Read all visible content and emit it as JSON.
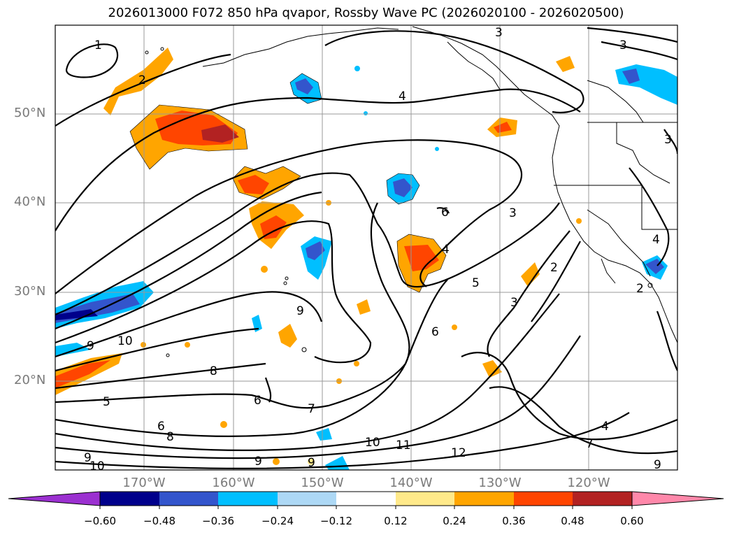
{
  "title": "2026013000 F072 850 hPa qvapor, Rossby Wave PC (2026020100 - 2026020500)",
  "map": {
    "lon_range": [
      -178,
      -108
    ],
    "lat_range": [
      10,
      60
    ],
    "lat_labels": [
      "50°N",
      "40°N",
      "30°N",
      "20°N"
    ],
    "lon_labels": [
      "170°W",
      "160°W",
      "150°W",
      "140°W",
      "130°W",
      "120°W"
    ],
    "contour_labels": [
      "1",
      "2",
      "3",
      "3",
      "4",
      "6",
      "3",
      "2",
      "4",
      "5",
      "3",
      "6",
      "9",
      "9",
      "10",
      "8",
      "6",
      "5",
      "6",
      "8",
      "7",
      "10",
      "11",
      "12",
      "9",
      "10",
      "9",
      "9",
      "2",
      "3",
      "4",
      "4",
      "7",
      "9"
    ]
  },
  "colorbar": {
    "colors": [
      "#9b30d0",
      "#00008b",
      "#3355cc",
      "#00bfff",
      "#add8f5",
      "#ffffff",
      "#ffe98a",
      "#ffa500",
      "#ff4500",
      "#b22222",
      "#ff88aa"
    ],
    "ticks": [
      "−0.60",
      "−0.48",
      "−0.36",
      "−0.24",
      "−0.12",
      "0.12",
      "0.24",
      "0.36",
      "0.48",
      "0.60"
    ]
  }
}
